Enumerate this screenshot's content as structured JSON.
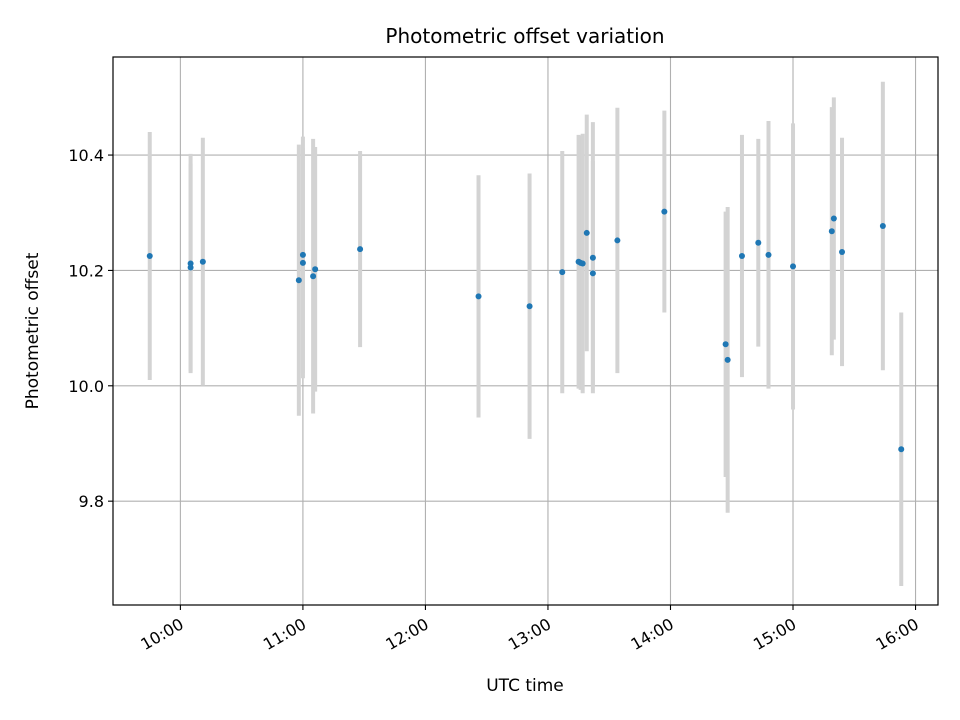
{
  "chart_data": {
    "type": "scatter",
    "title": "Photometric offset variation",
    "xlabel": "UTC time",
    "ylabel": "Photometric offset",
    "x_ticks": [
      "10:00",
      "11:00",
      "12:00",
      "13:00",
      "14:00",
      "15:00",
      "16:00"
    ],
    "y_ticks": [
      "9.8",
      "10.0",
      "10.2",
      "10.4"
    ],
    "xlim": [
      "09:27",
      "16:11"
    ],
    "ylim": [
      9.62,
      10.57
    ],
    "grid": true,
    "point_color": "#1f77b4",
    "errorbar_color": "#d3d3d3",
    "points": [
      {
        "x": "09:45",
        "y": 10.225,
        "err": 0.215
      },
      {
        "x": "10:05",
        "y": 10.212,
        "err": 0.19
      },
      {
        "x": "10:05",
        "y": 10.205,
        "err": 0.18
      },
      {
        "x": "10:11",
        "y": 10.215,
        "err": 0.215
      },
      {
        "x": "10:58",
        "y": 10.183,
        "err": 0.235
      },
      {
        "x": "11:00",
        "y": 10.227,
        "err": 0.205
      },
      {
        "x": "11:00",
        "y": 10.213,
        "err": 0.2
      },
      {
        "x": "11:05",
        "y": 10.19,
        "err": 0.238
      },
      {
        "x": "11:06",
        "y": 10.202,
        "err": 0.212
      },
      {
        "x": "11:28",
        "y": 10.237,
        "err": 0.17
      },
      {
        "x": "12:26",
        "y": 10.155,
        "err": 0.21
      },
      {
        "x": "12:51",
        "y": 10.138,
        "err": 0.23
      },
      {
        "x": "13:07",
        "y": 10.197,
        "err": 0.21
      },
      {
        "x": "13:15",
        "y": 10.215,
        "err": 0.22
      },
      {
        "x": "13:16",
        "y": 10.213,
        "err": 0.22
      },
      {
        "x": "13:17",
        "y": 10.212,
        "err": 0.225
      },
      {
        "x": "13:19",
        "y": 10.265,
        "err": 0.205
      },
      {
        "x": "13:22",
        "y": 10.195,
        "err": 0.195
      },
      {
        "x": "13:22",
        "y": 10.222,
        "err": 0.235
      },
      {
        "x": "13:34",
        "y": 10.252,
        "err": 0.23
      },
      {
        "x": "13:57",
        "y": 10.302,
        "err": 0.175
      },
      {
        "x": "14:27",
        "y": 10.072,
        "err": 0.23
      },
      {
        "x": "14:28",
        "y": 10.045,
        "err": 0.265
      },
      {
        "x": "14:35",
        "y": 10.225,
        "err": 0.21
      },
      {
        "x": "14:43",
        "y": 10.248,
        "err": 0.18
      },
      {
        "x": "14:48",
        "y": 10.227,
        "err": 0.232
      },
      {
        "x": "15:00",
        "y": 10.207,
        "err": 0.248
      },
      {
        "x": "15:19",
        "y": 10.268,
        "err": 0.215
      },
      {
        "x": "15:20",
        "y": 10.29,
        "err": 0.21
      },
      {
        "x": "15:24",
        "y": 10.232,
        "err": 0.198
      },
      {
        "x": "15:44",
        "y": 10.277,
        "err": 0.25
      },
      {
        "x": "15:53",
        "y": 9.89,
        "err": 0.237
      }
    ]
  }
}
